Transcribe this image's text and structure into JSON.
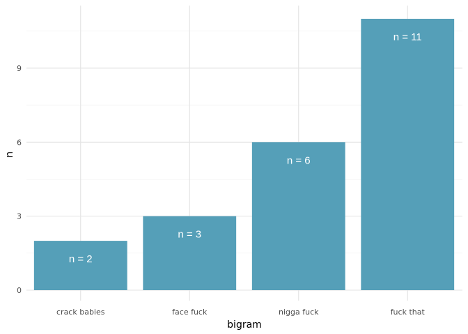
{
  "chart_data": {
    "type": "bar",
    "title": "",
    "xlabel": "bigram",
    "ylabel": "n",
    "categories": [
      "crack babies",
      "face fuck",
      "nigga fuck",
      "fuck that"
    ],
    "values": [
      2,
      3,
      6,
      11
    ],
    "bar_labels": [
      "n = 2",
      "n = 3",
      "n = 6",
      "n = 11"
    ],
    "ylim": [
      0,
      11
    ],
    "yticks": [
      0,
      3,
      6,
      9
    ],
    "ytick_labels": [
      "0",
      "3",
      "6",
      "9"
    ],
    "grid": true,
    "legend": "none",
    "colors": {
      "bar": "#559fb8",
      "grid_major": "#e3e3e3",
      "grid_minor": "#f1f1f1",
      "bar_label": "#ffffff"
    }
  }
}
